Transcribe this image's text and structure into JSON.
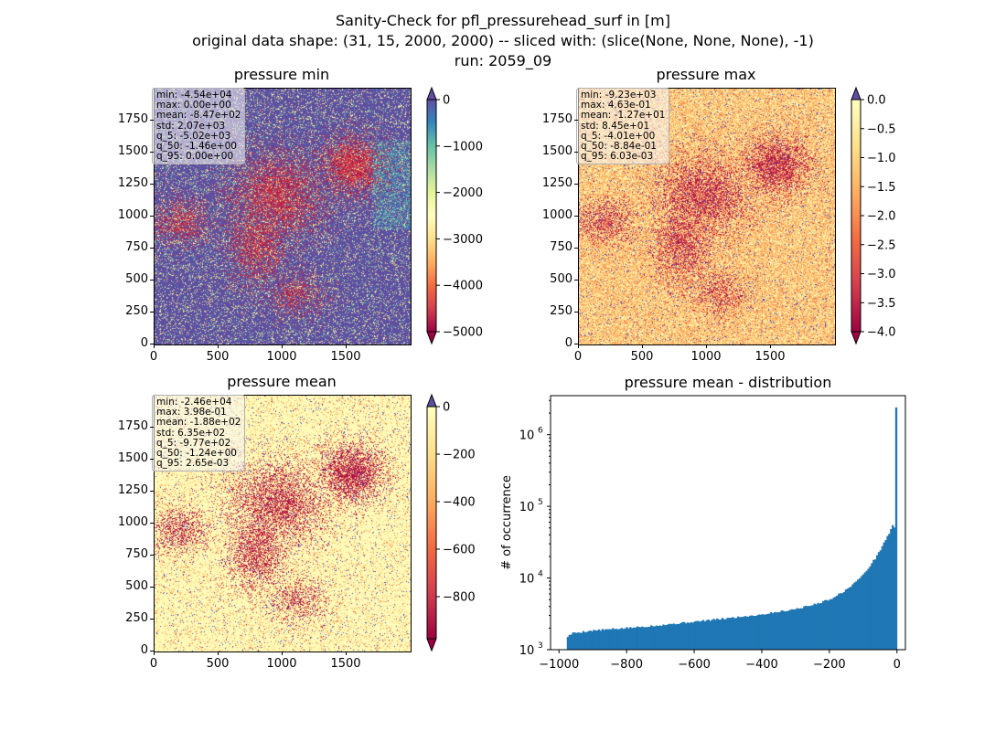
{
  "figure": {
    "title_line1": "Sanity-Check for pfl_pressurehead_surf in [m]",
    "title_line2": "original data shape: (31, 15, 2000, 2000) -- sliced with: (slice(None, None, None), -1)",
    "title_line3": "run: 2059_09"
  },
  "panels": {
    "min": {
      "title": "pressure min",
      "stats": [
        "min: -4.54e+04",
        "max: 0.00e+00",
        "mean: -8.47e+02",
        "std: 2.07e+03",
        "q_5: -5.02e+03",
        "q_50: -1.46e+00",
        "q_95: 0.00e+00"
      ],
      "colorbar_ticks": [
        "0",
        "−1000",
        "−2000",
        "−3000",
        "−4000",
        "−5000"
      ],
      "colorbar_range": [
        -5000,
        0
      ]
    },
    "max": {
      "title": "pressure max",
      "stats": [
        "min: -9.23e+03",
        "max: 4.63e-01",
        "mean: -1.27e+01",
        "std: 8.45e+01",
        "q_5: -4.01e+00",
        "q_50: -8.84e-01",
        "q_95: 6.03e-03"
      ],
      "colorbar_ticks": [
        "0.0",
        "−0.5",
        "−1.0",
        "−1.5",
        "−2.0",
        "−2.5",
        "−3.0",
        "−3.5",
        "−4.0"
      ],
      "colorbar_range": [
        -4.0,
        0.0
      ]
    },
    "mean": {
      "title": "pressure mean",
      "stats": [
        "min: -2.46e+04",
        "max: 3.98e-01",
        "mean: -1.88e+02",
        "std: 6.35e+02",
        "q_5: -9.77e+02",
        "q_50: -1.24e+00",
        "q_95: 2.65e-03"
      ],
      "colorbar_ticks": [
        "0",
        "−200",
        "−400",
        "−600",
        "−800"
      ],
      "colorbar_range": [
        -977,
        0
      ]
    },
    "map_axes": {
      "x_ticks": [
        "0",
        "500",
        "1000",
        "1500"
      ],
      "y_ticks": [
        "0",
        "250",
        "500",
        "750",
        "1000",
        "1250",
        "1500",
        "1750"
      ]
    }
  },
  "chart_data": [
    {
      "type": "heatmap",
      "title": "pressure min",
      "xlim": [
        0,
        2000
      ],
      "ylim": [
        0,
        2000
      ],
      "x_ticks": [
        0,
        500,
        1000,
        1500
      ],
      "y_ticks": [
        0,
        250,
        500,
        750,
        1000,
        1250,
        1500,
        1750
      ],
      "colormap": "Spectral",
      "color_range": [
        -5000,
        0
      ],
      "colorbar_ticks": [
        0,
        -1000,
        -2000,
        -3000,
        -4000,
        -5000
      ]
    },
    {
      "type": "heatmap",
      "title": "pressure max",
      "xlim": [
        0,
        2000
      ],
      "ylim": [
        0,
        2000
      ],
      "x_ticks": [
        0,
        500,
        1000,
        1500
      ],
      "y_ticks": [
        0,
        250,
        500,
        750,
        1000,
        1250,
        1500,
        1750
      ],
      "colormap": "Spectral",
      "color_range": [
        -4.0,
        0.0
      ],
      "colorbar_ticks": [
        0.0,
        -0.5,
        -1.0,
        -1.5,
        -2.0,
        -2.5,
        -3.0,
        -3.5,
        -4.0
      ]
    },
    {
      "type": "heatmap",
      "title": "pressure mean",
      "xlim": [
        0,
        2000
      ],
      "ylim": [
        0,
        2000
      ],
      "x_ticks": [
        0,
        500,
        1000,
        1500
      ],
      "y_ticks": [
        0,
        250,
        500,
        750,
        1000,
        1250,
        1500,
        1750
      ],
      "colormap": "Spectral",
      "color_range": [
        -977,
        0
      ],
      "colorbar_ticks": [
        0,
        -200,
        -400,
        -600,
        -800
      ]
    },
    {
      "type": "bar",
      "title": "pressure mean - distribution",
      "ylabel": "# of occurrence",
      "yscale": "log",
      "xlim": [
        -1025,
        25
      ],
      "ylim": [
        1000,
        3500000
      ],
      "x_ticks": [
        -1000,
        -800,
        -600,
        -400,
        -200,
        0
      ],
      "x_tick_labels": [
        "−1000",
        "−800",
        "−600",
        "−400",
        "−200",
        "0"
      ],
      "y_ticks": [
        1000,
        10000,
        100000,
        1000000
      ],
      "color": "#1f77b4",
      "bin_edges_range": [
        -977,
        0
      ],
      "anchors_x": [
        -977,
        -960,
        -900,
        -800,
        -700,
        -600,
        -500,
        -400,
        -300,
        -250,
        -200,
        -150,
        -100,
        -60,
        -40,
        -20,
        -10,
        -5,
        -3,
        -2,
        -1
      ],
      "anchors_y": [
        1500,
        1700,
        1850,
        2000,
        2200,
        2450,
        2750,
        3100,
        3700,
        4200,
        5000,
        6800,
        11000,
        20000,
        30000,
        45000,
        60000,
        40000,
        70000,
        150000,
        2400000
      ]
    }
  ]
}
